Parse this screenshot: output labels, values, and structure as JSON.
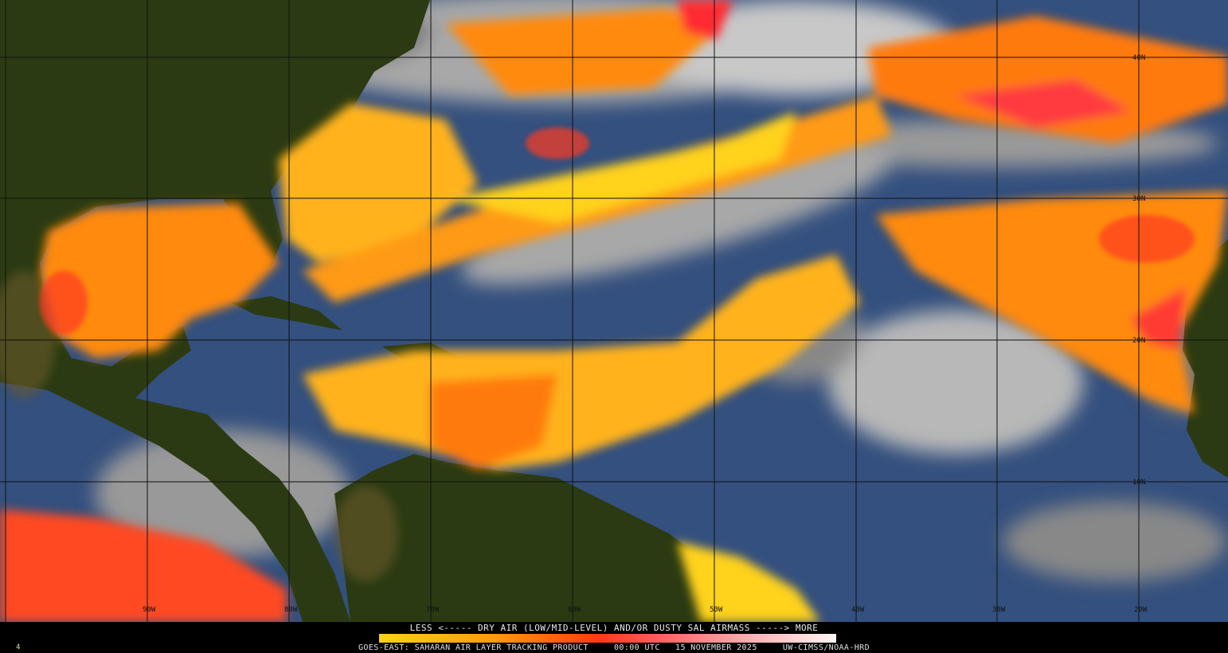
{
  "map": {
    "longitude_labels": [
      "90W",
      "80W",
      "70W",
      "60W",
      "50W",
      "40W",
      "30W",
      "20W"
    ],
    "latitude_labels": [
      "40N",
      "30N",
      "20N",
      "10N"
    ],
    "colors": {
      "ocean": "#34507e",
      "land": "#2b3a12",
      "cloud": "#b4b4b4",
      "dry_low": "#ffd21a",
      "dry_mid": "#ff8a10",
      "dry_high": "#ff2a20"
    }
  },
  "footer": {
    "legend_title": "LESS <----- DRY AIR (LOW/MID-LEVEL) AND/OR DUSTY SAL AIRMASS -----> MORE",
    "product_line": "GOES-EAST: SAHARAN AIR LAYER TRACKING PRODUCT     00:00 UTC   15 NOVEMBER 2025     UW-CIMSS/NOAA-HRD",
    "corner_mark": "4"
  }
}
